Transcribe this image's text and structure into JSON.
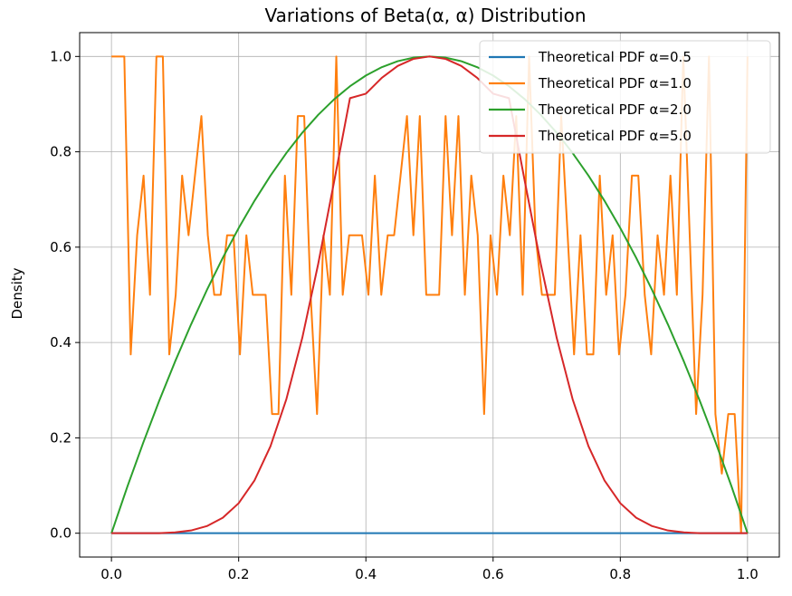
{
  "chart_data": {
    "type": "line",
    "title": "Variations of Beta(α, α) Distribution",
    "xlabel": "",
    "ylabel": "Density",
    "xlim": [
      -0.05,
      1.05
    ],
    "ylim": [
      -0.05,
      1.05
    ],
    "x_ticks": [
      0.0,
      0.2,
      0.4,
      0.6,
      0.8,
      1.0
    ],
    "x_tick_labels": [
      "0.0",
      "0.2",
      "0.4",
      "0.6",
      "0.8",
      "1.0"
    ],
    "y_ticks": [
      0.0,
      0.2,
      0.4,
      0.6,
      0.8,
      1.0
    ],
    "y_tick_labels": [
      "0.0",
      "0.2",
      "0.4",
      "0.6",
      "0.8",
      "1.0"
    ],
    "grid": true,
    "legend_position": "top-right",
    "series": [
      {
        "name": "Theoretical PDF α=0.5",
        "color": "#1f77b4",
        "x": [
          0.0,
          1.0
        ],
        "y": [
          0.0,
          0.0
        ]
      },
      {
        "name": "Theoretical PDF α=1.0",
        "color": "#ff7f0e",
        "x": [
          0.0,
          0.0101,
          0.0202,
          0.0303,
          0.0404,
          0.0505,
          0.0606,
          0.0707,
          0.0808,
          0.0909,
          0.101,
          0.1111,
          0.1212,
          0.1313,
          0.1414,
          0.1515,
          0.1616,
          0.1717,
          0.1818,
          0.1919,
          0.202,
          0.2121,
          0.2222,
          0.2323,
          0.2424,
          0.2525,
          0.2626,
          0.2727,
          0.2828,
          0.2929,
          0.303,
          0.3131,
          0.3232,
          0.3333,
          0.3434,
          0.3535,
          0.3636,
          0.3737,
          0.3838,
          0.3939,
          0.404,
          0.4141,
          0.4242,
          0.4343,
          0.4444,
          0.4545,
          0.4646,
          0.4747,
          0.4848,
          0.4949,
          0.5051,
          0.5152,
          0.5253,
          0.5354,
          0.5455,
          0.5556,
          0.5657,
          0.5758,
          0.5859,
          0.596,
          0.6061,
          0.6162,
          0.6263,
          0.6364,
          0.6465,
          0.6566,
          0.6667,
          0.6768,
          0.6869,
          0.697,
          0.7071,
          0.7172,
          0.7273,
          0.7374,
          0.7475,
          0.7576,
          0.7677,
          0.7778,
          0.7879,
          0.798,
          0.8081,
          0.8182,
          0.8283,
          0.8384,
          0.8485,
          0.8586,
          0.8687,
          0.8788,
          0.8889,
          0.899,
          0.9091,
          0.9192,
          0.9293,
          0.9394,
          0.9495,
          0.9596,
          0.9697,
          0.9798,
          0.9899,
          1.0
        ],
        "y": [
          1.0,
          1.0,
          1.0,
          0.375,
          0.625,
          0.75,
          0.5,
          1.0,
          1.0,
          0.375,
          0.5,
          0.75,
          0.625,
          0.75,
          0.875,
          0.625,
          0.5,
          0.5,
          0.625,
          0.625,
          0.375,
          0.625,
          0.5,
          0.5,
          0.5,
          0.25,
          0.25,
          0.75,
          0.5,
          0.875,
          0.875,
          0.5,
          0.25,
          0.625,
          0.5,
          1.0,
          0.5,
          0.625,
          0.625,
          0.625,
          0.5,
          0.75,
          0.5,
          0.625,
          0.625,
          0.75,
          0.875,
          0.625,
          0.875,
          0.5,
          0.5,
          0.5,
          0.875,
          0.625,
          0.875,
          0.5,
          0.75,
          0.625,
          0.25,
          0.625,
          0.5,
          0.75,
          0.625,
          0.875,
          0.5,
          1.0,
          0.625,
          0.5,
          0.5,
          0.5,
          0.875,
          0.625,
          0.375,
          0.625,
          0.375,
          0.375,
          0.75,
          0.5,
          0.625,
          0.375,
          0.5,
          0.75,
          0.75,
          0.5,
          0.375,
          0.625,
          0.5,
          0.75,
          0.5,
          1.0,
          0.625,
          0.25,
          0.5,
          1.0,
          0.25,
          0.125,
          0.25,
          0.25,
          0.0,
          1.0
        ]
      },
      {
        "name": "Theoretical PDF α=2.0",
        "color": "#2ca02c",
        "x": [
          0.0,
          0.025,
          0.05,
          0.075,
          0.1,
          0.125,
          0.15,
          0.175,
          0.2,
          0.225,
          0.25,
          0.275,
          0.3,
          0.325,
          0.35,
          0.375,
          0.4,
          0.425,
          0.45,
          0.475,
          0.5,
          0.525,
          0.55,
          0.575,
          0.6,
          0.625,
          0.65,
          0.675,
          0.7,
          0.725,
          0.75,
          0.775,
          0.8,
          0.825,
          0.85,
          0.875,
          0.9,
          0.925,
          0.95,
          0.975,
          1.0
        ],
        "y": [
          0.0,
          0.0975,
          0.19,
          0.2775,
          0.36,
          0.4375,
          0.51,
          0.5775,
          0.64,
          0.6975,
          0.75,
          0.7975,
          0.84,
          0.8775,
          0.91,
          0.9375,
          0.96,
          0.9775,
          0.99,
          0.9975,
          1.0,
          0.9975,
          0.99,
          0.9775,
          0.96,
          0.9375,
          0.91,
          0.8775,
          0.84,
          0.7975,
          0.75,
          0.6975,
          0.64,
          0.5775,
          0.51,
          0.4375,
          0.36,
          0.2775,
          0.19,
          0.0975,
          0.0
        ]
      },
      {
        "name": "Theoretical PDF α=5.0",
        "color": "#d62728",
        "x": [
          0.0,
          0.025,
          0.05,
          0.075,
          0.1,
          0.125,
          0.15,
          0.175,
          0.2,
          0.225,
          0.25,
          0.275,
          0.3,
          0.325,
          0.35,
          0.375,
          0.4,
          0.425,
          0.45,
          0.475,
          0.5,
          0.525,
          0.55,
          0.575,
          0.6,
          0.625,
          0.65,
          0.675,
          0.7,
          0.725,
          0.75,
          0.775,
          0.8,
          0.825,
          0.85,
          0.875,
          0.9,
          0.925,
          0.95,
          0.975,
          1.0
        ],
        "y": [
          0.0,
          0.0,
          0.0,
          0.0001,
          0.0017,
          0.0057,
          0.0149,
          0.0324,
          0.0629,
          0.111,
          0.1823,
          0.2812,
          0.4097,
          0.5646,
          0.7372,
          0.9125,
          0.9219,
          0.9551,
          0.9801,
          0.995,
          1.0,
          0.995,
          0.9801,
          0.9551,
          0.9219,
          0.9125,
          0.7372,
          0.5646,
          0.4097,
          0.2812,
          0.1823,
          0.111,
          0.0629,
          0.0324,
          0.0149,
          0.0057,
          0.0017,
          0.0001,
          0.0,
          0.0,
          0.0
        ]
      }
    ]
  }
}
